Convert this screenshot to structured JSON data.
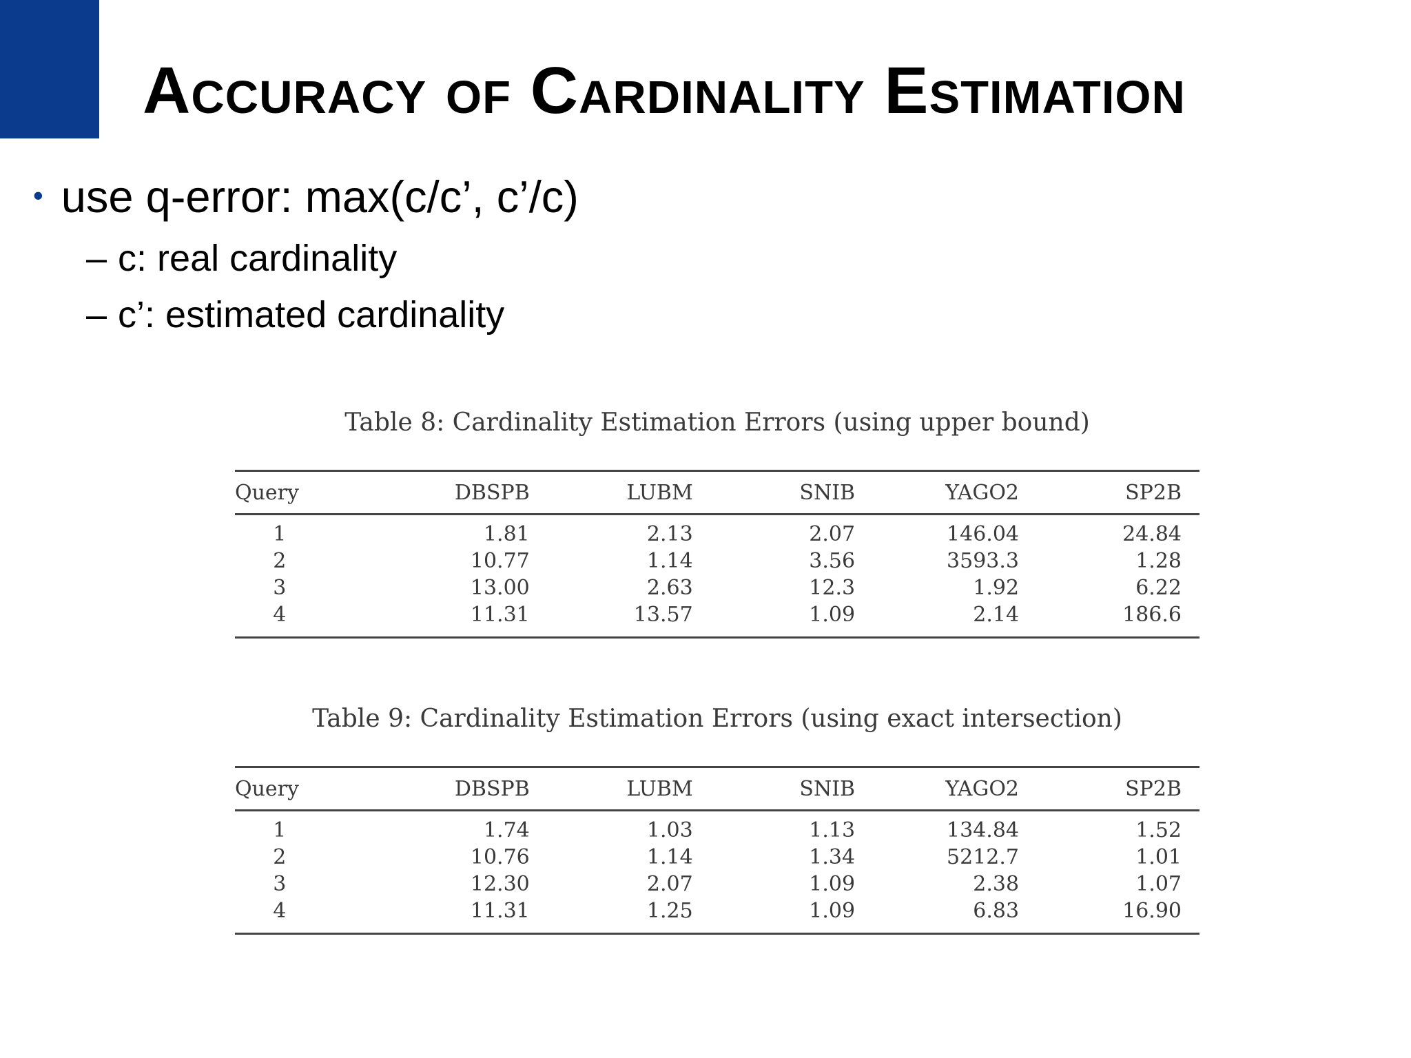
{
  "slide": {
    "title": "Accuracy of Cardinality Estimation",
    "accent_color": "#0b3b8c"
  },
  "bullets": {
    "main": "use q-error: max(c/c’, c’/c)",
    "sub": [
      "c: real cardinality",
      "c’: estimated cardinality"
    ]
  },
  "tables": [
    {
      "caption": "Table 8: Cardinality Estimation Errors (using upper bound)",
      "columns": [
        "Query",
        "DBSPB",
        "LUBM",
        "SNIB",
        "YAGO2",
        "SP2B"
      ],
      "rows": [
        [
          "1",
          "1.81",
          "2.13",
          "2.07",
          "146.04",
          "24.84"
        ],
        [
          "2",
          "10.77",
          "1.14",
          "3.56",
          "3593.3",
          "1.28"
        ],
        [
          "3",
          "13.00",
          "2.63",
          "12.3",
          "1.92",
          "6.22"
        ],
        [
          "4",
          "11.31",
          "13.57",
          "1.09",
          "2.14",
          "186.6"
        ]
      ]
    },
    {
      "caption": "Table 9: Cardinality Estimation Errors (using exact intersection)",
      "columns": [
        "Query",
        "DBSPB",
        "LUBM",
        "SNIB",
        "YAGO2",
        "SP2B"
      ],
      "rows": [
        [
          "1",
          "1.74",
          "1.03",
          "1.13",
          "134.84",
          "1.52"
        ],
        [
          "2",
          "10.76",
          "1.14",
          "1.34",
          "5212.7",
          "1.01"
        ],
        [
          "3",
          "12.30",
          "2.07",
          "1.09",
          "2.38",
          "1.07"
        ],
        [
          "4",
          "11.31",
          "1.25",
          "1.09",
          "6.83",
          "16.90"
        ]
      ]
    }
  ]
}
